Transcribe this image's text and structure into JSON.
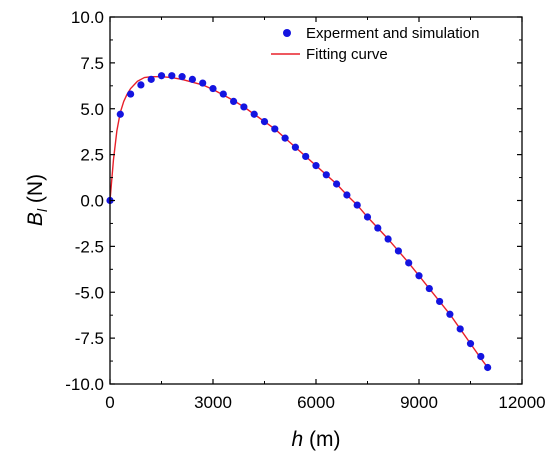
{
  "chart_data": {
    "type": "scatter",
    "title": "",
    "xlabel": {
      "symbol": "h",
      "unit": " (m)"
    },
    "ylabel": {
      "symbol": "B",
      "subscript": "l",
      "unit": " (N)"
    },
    "xlim": [
      0,
      12000
    ],
    "ylim": [
      -10.0,
      10.0
    ],
    "xticks": [
      0,
      3000,
      6000,
      9000,
      12000
    ],
    "xtick_labels": [
      "0",
      "3000",
      "6000",
      "9000",
      "12000"
    ],
    "yticks": [
      -10.0,
      -7.5,
      -5.0,
      -2.5,
      0.0,
      2.5,
      5.0,
      7.5,
      10.0
    ],
    "ytick_labels": [
      "-10.0",
      "-7.5",
      "-5.0",
      "-2.5",
      "0.0",
      "2.5",
      "5.0",
      "7.5",
      "10.0"
    ],
    "grid": false,
    "legend_position": "top-right",
    "colors": {
      "points": "#1414e0",
      "curve": "#e8202a",
      "axis": "#000000"
    },
    "series": [
      {
        "name": "Experment and simulation",
        "kind": "scatter",
        "x": [
          0,
          300,
          600,
          900,
          1200,
          1500,
          1800,
          2100,
          2400,
          2700,
          3000,
          3300,
          3600,
          3900,
          4200,
          4500,
          4800,
          5100,
          5400,
          5700,
          6000,
          6300,
          6600,
          6900,
          7200,
          7500,
          7800,
          8100,
          8400,
          8700,
          9000,
          9300,
          9600,
          9900,
          10200,
          10500,
          10800,
          11000
        ],
        "y": [
          0.0,
          4.7,
          5.8,
          6.3,
          6.6,
          6.8,
          6.8,
          6.75,
          6.6,
          6.4,
          6.1,
          5.8,
          5.4,
          5.1,
          4.7,
          4.3,
          3.9,
          3.4,
          2.9,
          2.4,
          1.9,
          1.4,
          0.9,
          0.3,
          -0.25,
          -0.9,
          -1.5,
          -2.1,
          -2.75,
          -3.4,
          -4.1,
          -4.8,
          -5.5,
          -6.2,
          -7.0,
          -7.8,
          -8.5,
          -9.1
        ]
      },
      {
        "name": "Fitting curve",
        "kind": "line",
        "x": [
          0,
          100,
          200,
          300,
          400,
          500,
          600,
          800,
          1000,
          1200,
          1500,
          1800,
          2100,
          2400,
          2700,
          3000,
          3300,
          3600,
          3900,
          4200,
          4500,
          4800,
          5100,
          5400,
          5700,
          6000,
          6300,
          6600,
          6900,
          7200,
          7500,
          7800,
          8100,
          8400,
          8700,
          9000,
          9300,
          9600,
          9900,
          10200,
          10500,
          10800,
          11000
        ],
        "y": [
          0.0,
          2.2,
          3.8,
          4.8,
          5.4,
          5.8,
          6.1,
          6.5,
          6.7,
          6.75,
          6.75,
          6.7,
          6.6,
          6.45,
          6.3,
          6.05,
          5.75,
          5.45,
          5.1,
          4.7,
          4.3,
          3.9,
          3.4,
          2.9,
          2.4,
          1.9,
          1.4,
          0.9,
          0.3,
          -0.25,
          -0.9,
          -1.5,
          -2.1,
          -2.75,
          -3.4,
          -4.1,
          -4.8,
          -5.5,
          -6.2,
          -7.0,
          -7.8,
          -8.6,
          -9.1
        ]
      }
    ]
  }
}
